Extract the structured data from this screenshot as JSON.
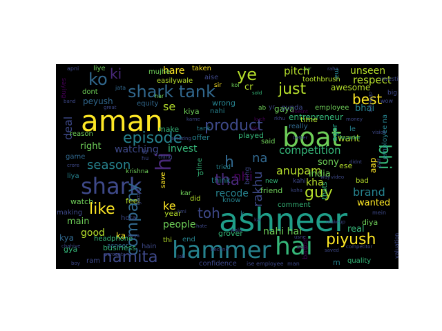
{
  "palette": [
    "#fde725",
    "#b5de2b",
    "#6ece58",
    "#35b779",
    "#1f9e89",
    "#26828e",
    "#31688e",
    "#3e4989",
    "#482878",
    "#440154"
  ],
  "words": [
    {
      "text": "ashneer",
      "color": "#1f9e89"
    },
    {
      "text": "hammer",
      "color": "#26828e"
    },
    {
      "text": "aman",
      "color": "#fde725"
    },
    {
      "text": "boat",
      "color": "#6ece58"
    },
    {
      "text": "shark tank",
      "color": "#31688e"
    },
    {
      "text": "shark",
      "color": "#3e4989"
    },
    {
      "text": "company",
      "color": "#31688e"
    },
    {
      "text": "hai",
      "color": "#35b779"
    },
    {
      "text": "namita",
      "color": "#3e4989"
    },
    {
      "text": "episode",
      "color": "#26828e"
    },
    {
      "text": "product",
      "color": "#3e4989"
    },
    {
      "text": "hi",
      "color": "#482878"
    },
    {
      "text": "ko",
      "color": "#31688e"
    },
    {
      "text": "ye",
      "color": "#b5de2b"
    },
    {
      "text": "bhi",
      "color": "#35b779"
    },
    {
      "text": "piyush",
      "color": "#fde725"
    },
    {
      "text": "tha",
      "color": "#482878"
    },
    {
      "text": "like",
      "color": "#fde725"
    },
    {
      "text": "just",
      "color": "#b5de2b"
    },
    {
      "text": "guy",
      "color": "#b5de2b"
    },
    {
      "text": "season",
      "color": "#26828e"
    },
    {
      "text": "ki",
      "color": "#482878"
    },
    {
      "text": "h",
      "color": "#31688e"
    },
    {
      "text": "toh",
      "color": "#3e4989"
    },
    {
      "text": "anupam",
      "color": "#b5de2b"
    },
    {
      "text": "brand",
      "color": "#26828e"
    },
    {
      "text": "best",
      "color": "#fde725"
    },
    {
      "text": "nhi",
      "color": "#440154"
    },
    {
      "text": "na",
      "color": "#31688e"
    },
    {
      "text": "rakhu",
      "color": "#3e4989"
    },
    {
      "text": "deal",
      "color": "#3e4989"
    },
    {
      "text": "respect",
      "color": "#b5de2b"
    },
    {
      "text": "pitch",
      "color": "#b5de2b"
    },
    {
      "text": "competition",
      "color": "#35b779"
    },
    {
      "text": "ke",
      "color": "#fde725"
    },
    {
      "text": "se",
      "color": "#b5de2b"
    },
    {
      "text": "people",
      "color": "#6ece58"
    },
    {
      "text": "recode",
      "color": "#26828e"
    },
    {
      "text": "nahi hai",
      "color": "#6ece58"
    },
    {
      "text": "kha",
      "color": "#b5de2b"
    },
    {
      "text": "good",
      "color": "#b5de2b"
    },
    {
      "text": "main",
      "color": "#6ece58"
    },
    {
      "text": "hare",
      "color": "#fde725"
    },
    {
      "text": "unseen",
      "color": "#b5de2b"
    },
    {
      "text": "watching",
      "color": "#3e4989"
    },
    {
      "text": "invest",
      "color": "#35b779"
    },
    {
      "text": "right",
      "color": "#6ece58"
    },
    {
      "text": "wanted",
      "color": "#fde725"
    },
    {
      "text": "sony",
      "color": "#6ece58"
    },
    {
      "text": "india",
      "color": "#6ece58"
    },
    {
      "text": "real",
      "color": "#35b779"
    },
    {
      "text": "bhai",
      "color": "#26828e"
    },
    {
      "text": "entrepreneur",
      "color": "#35b779"
    },
    {
      "text": "gaya",
      "color": "#6ece58"
    },
    {
      "text": "mujhe",
      "color": "#6ece58"
    },
    {
      "text": "liye",
      "color": "#6ece58"
    },
    {
      "text": "easilywale",
      "color": "#b5de2b"
    },
    {
      "text": "equity",
      "color": "#31688e"
    },
    {
      "text": "peyush",
      "color": "#31688e"
    },
    {
      "text": "wrong",
      "color": "#26828e"
    },
    {
      "text": "cr",
      "color": "#b5de2b"
    },
    {
      "text": "kiya",
      "color": "#6ece58"
    },
    {
      "text": "nahi",
      "color": "#26828e"
    },
    {
      "text": "make",
      "color": "#35b779"
    },
    {
      "text": "tank",
      "color": "#26828e"
    },
    {
      "text": "played",
      "color": "#35b779"
    },
    {
      "text": "said",
      "color": "#6ece58"
    },
    {
      "text": "offer",
      "color": "#26828e"
    },
    {
      "text": "want",
      "color": "#b5de2b"
    },
    {
      "text": "feel",
      "color": "#b5de2b"
    },
    {
      "text": "watch",
      "color": "#6ece58"
    },
    {
      "text": "ka",
      "color": "#fde725"
    },
    {
      "text": "kya",
      "color": "#31688e"
    },
    {
      "text": "gya",
      "color": "#35b779"
    },
    {
      "text": "business",
      "color": "#35b779"
    },
    {
      "text": "ram",
      "color": "#3e4989"
    },
    {
      "text": "grover",
      "color": "#35b779"
    },
    {
      "text": "comment",
      "color": "#35b779"
    },
    {
      "text": "diya",
      "color": "#6ece58"
    },
    {
      "text": "quality",
      "color": "#35b779"
    },
    {
      "text": "think",
      "color": "#26828e"
    },
    {
      "text": "friend",
      "color": "#6ece58"
    },
    {
      "text": "tried",
      "color": "#26828e"
    },
    {
      "text": "know",
      "color": "#26828e"
    },
    {
      "text": "bring",
      "color": "#3e4989"
    },
    {
      "text": "time",
      "color": "#b5de2b"
    },
    {
      "text": "awesome",
      "color": "#b5de2b"
    },
    {
      "text": "employee",
      "color": "#6ece58"
    },
    {
      "text": "thi",
      "color": "#b5de2b"
    },
    {
      "text": "end",
      "color": "#26828e"
    },
    {
      "text": "confidence",
      "color": "#3e4989"
    },
    {
      "text": "hain",
      "color": "#3e4989"
    },
    {
      "text": "asneer",
      "color": "#31688e"
    },
    {
      "text": "headphone",
      "color": "#35b779"
    },
    {
      "text": "making",
      "color": "#3e4989"
    },
    {
      "text": "krishna",
      "color": "#6ece58"
    },
    {
      "text": "game",
      "color": "#31688e"
    },
    {
      "text": "reason",
      "color": "#6ece58"
    },
    {
      "text": "dont",
      "color": "#6ece58"
    },
    {
      "text": "toothbrush",
      "color": "#b5de2b"
    },
    {
      "text": "taken",
      "color": "#fde725"
    },
    {
      "text": "kar",
      "color": "#6ece58"
    },
    {
      "text": "did",
      "color": "#b5de2b"
    },
    {
      "text": "line",
      "color": "#35b779"
    },
    {
      "text": "save",
      "color": "#fde725"
    },
    {
      "text": "hota",
      "color": "#3e4989"
    },
    {
      "text": "liya",
      "color": "#26828e"
    },
    {
      "text": "thats",
      "color": "#35b779"
    },
    {
      "text": "bande",
      "color": "#440154"
    },
    {
      "text": "bad",
      "color": "#b5de2b"
    },
    {
      "text": "aap",
      "color": "#fde725"
    },
    {
      "text": "ese",
      "color": "#b5de2b"
    },
    {
      "text": "really",
      "color": "#31688e"
    },
    {
      "text": "employee na",
      "color": "#26828e"
    },
    {
      "text": "le",
      "color": "#26828e"
    },
    {
      "text": "agar",
      "color": "#1f9e89"
    },
    {
      "text": "new",
      "color": "#35b779"
    },
    {
      "text": "saying",
      "color": "#440154"
    },
    {
      "text": "m",
      "color": "#26828e"
    },
    {
      "text": "jo",
      "color": "#35b779"
    },
    {
      "text": "kahi",
      "color": "#3e4989"
    },
    {
      "text": "k",
      "color": "#26828e"
    },
    {
      "text": "sir",
      "color": "#fde725"
    },
    {
      "text": "koi",
      "color": "#6ece58"
    },
    {
      "text": "aise",
      "color": "#3e4989"
    },
    {
      "text": "gunda",
      "color": "#3e4989"
    },
    {
      "text": "apni",
      "color": "#3e4989"
    },
    {
      "text": "har",
      "color": "#6ece58"
    },
    {
      "text": "jata",
      "color": "#31688e"
    },
    {
      "text": "great",
      "color": "#3e4989"
    },
    {
      "text": "sold",
      "color": "#35b779"
    },
    {
      "text": "aur",
      "color": "#6ece58"
    },
    {
      "text": "raha",
      "color": "#3e4989"
    },
    {
      "text": "mai",
      "color": "#26828e"
    },
    {
      "text": "big",
      "color": "#3e4989"
    },
    {
      "text": "wow",
      "color": "#3e4989"
    },
    {
      "text": "ab",
      "color": "#6ece58"
    },
    {
      "text": "yr",
      "color": "#3e4989"
    },
    {
      "text": "kr",
      "color": "#3e4989"
    },
    {
      "text": "karne",
      "color": "#3e4989"
    },
    {
      "text": "amazing",
      "color": "#3e4989"
    },
    {
      "text": "kuch",
      "color": "#440154"
    },
    {
      "text": "founder",
      "color": "#35b779"
    },
    {
      "text": "investing",
      "color": "#3e4989"
    },
    {
      "text": "money",
      "color": "#3e4989"
    },
    {
      "text": "better",
      "color": "#3e4989"
    },
    {
      "text": "life",
      "color": "#440154"
    },
    {
      "text": "doesnt",
      "color": "#440154"
    },
    {
      "text": "different",
      "color": "#3e4989"
    },
    {
      "text": "vision",
      "color": "#3e4989"
    },
    {
      "text": "par",
      "color": "#3e4989"
    },
    {
      "text": "didnt",
      "color": "#3e4989"
    },
    {
      "text": "way",
      "color": "#3e4989"
    },
    {
      "text": "video",
      "color": "#3e4989"
    },
    {
      "text": "makeup",
      "color": "#3e4989"
    },
    {
      "text": "mein",
      "color": "#3e4989"
    },
    {
      "text": "valuation",
      "color": "#3e4989"
    },
    {
      "text": "competitor",
      "color": "#3e4989"
    },
    {
      "text": "saved",
      "color": "#3e4989"
    },
    {
      "text": "man",
      "color": "#3e4989"
    },
    {
      "text": "employee",
      "color": "#3e4989"
    },
    {
      "text": "ise",
      "color": "#3e4989"
    },
    {
      "text": "usne",
      "color": "#3e4989"
    },
    {
      "text": "boss",
      "color": "#440154"
    },
    {
      "text": "bechne",
      "color": "#3e4989"
    },
    {
      "text": "hate",
      "color": "#3e4989"
    },
    {
      "text": "wala",
      "color": "#3e4989"
    },
    {
      "text": "jab",
      "color": "#3e4989"
    },
    {
      "text": "year",
      "color": "#b5de2b"
    },
    {
      "text": "getting",
      "color": "#3e4989"
    },
    {
      "text": "hu",
      "color": "#3e4989"
    },
    {
      "text": "thing",
      "color": "#3e4989"
    },
    {
      "text": "crore",
      "color": "#3e4989"
    },
    {
      "text": "percent",
      "color": "#3e4989"
    },
    {
      "text": "boy",
      "color": "#3e4989"
    },
    {
      "text": "aaya",
      "color": "#3e4989"
    },
    {
      "text": "chahiye",
      "color": "#3e4989"
    },
    {
      "text": "kal",
      "color": "#3e4989"
    },
    {
      "text": "kaha",
      "color": "#3e4989"
    },
    {
      "text": "band",
      "color": "#3e4989"
    },
    {
      "text": "rkhu",
      "color": "#3e4989"
    },
    {
      "text": "kmi",
      "color": "#3e4989"
    }
  ]
}
